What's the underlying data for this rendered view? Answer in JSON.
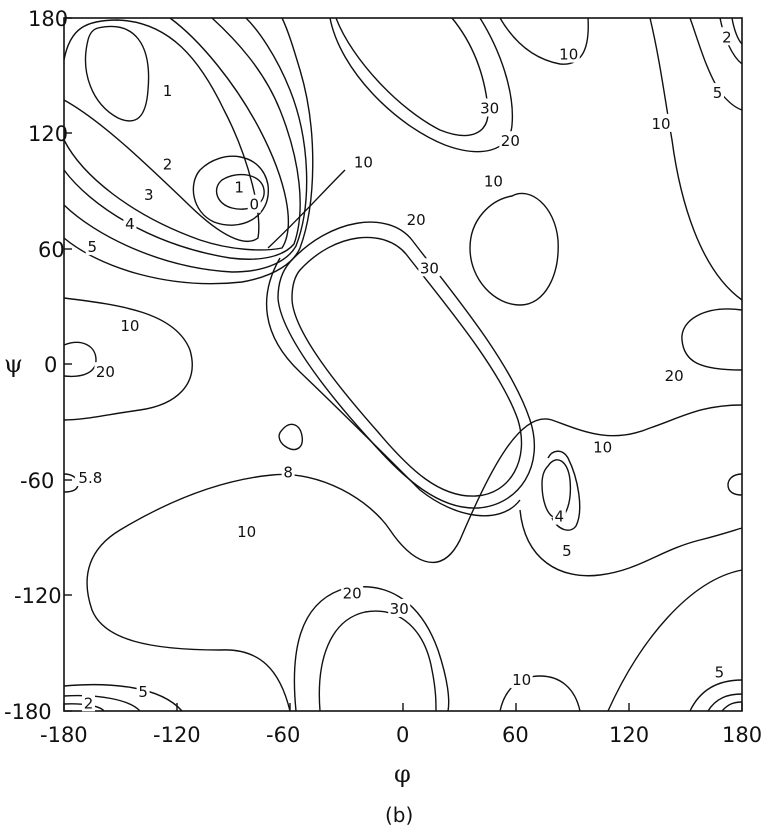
{
  "chart_data": {
    "type": "contour",
    "title": "",
    "xlabel": "φ",
    "ylabel": "ψ",
    "caption": "(b)",
    "xlim": [
      -180,
      180
    ],
    "ylim": [
      -180,
      180
    ],
    "xticks": [
      "-180",
      "-120",
      "-60",
      "0",
      "60",
      "120",
      "180"
    ],
    "yticks": [
      "180",
      "120",
      "60",
      "0",
      "-60",
      "-120",
      "-180"
    ],
    "grid": false,
    "contour_labels": [
      {
        "text": "1",
        "x": -125,
        "y": 142
      },
      {
        "text": "2",
        "x": -125,
        "y": 104
      },
      {
        "text": "3",
        "x": -135,
        "y": 88
      },
      {
        "text": "4",
        "x": -145,
        "y": 73
      },
      {
        "text": "5",
        "x": -165,
        "y": 61
      },
      {
        "text": "1",
        "x": -87,
        "y": 92
      },
      {
        "text": "0",
        "x": -79,
        "y": 83
      },
      {
        "text": "10",
        "x": -21,
        "y": 105
      },
      {
        "text": "10",
        "x": 88,
        "y": 161
      },
      {
        "text": "30",
        "x": 46,
        "y": 133
      },
      {
        "text": "20",
        "x": 57,
        "y": 116
      },
      {
        "text": "10",
        "x": 137,
        "y": 125
      },
      {
        "text": "5",
        "x": 167,
        "y": 141
      },
      {
        "text": "2",
        "x": 172,
        "y": 170
      },
      {
        "text": "20",
        "x": 7,
        "y": 75
      },
      {
        "text": "10",
        "x": 48,
        "y": 95
      },
      {
        "text": "30",
        "x": 14,
        "y": 50
      },
      {
        "text": "10",
        "x": -145,
        "y": 20
      },
      {
        "text": "20",
        "x": -158,
        "y": -4
      },
      {
        "text": "20",
        "x": 144,
        "y": -6
      },
      {
        "text": "10",
        "x": 106,
        "y": -43
      },
      {
        "text": "8",
        "x": -61,
        "y": -56
      },
      {
        "text": "5.8",
        "x": -166,
        "y": -59
      },
      {
        "text": "4",
        "x": 83,
        "y": -79
      },
      {
        "text": "5",
        "x": 87,
        "y": -97
      },
      {
        "text": "10",
        "x": -83,
        "y": -87
      },
      {
        "text": "20",
        "x": -27,
        "y": -119
      },
      {
        "text": "30",
        "x": -2,
        "y": -127
      },
      {
        "text": "10",
        "x": 63,
        "y": -164
      },
      {
        "text": "5",
        "x": 168,
        "y": -160
      },
      {
        "text": "5",
        "x": -138,
        "y": -170
      },
      {
        "text": "2",
        "x": -167,
        "y": -176
      }
    ]
  }
}
